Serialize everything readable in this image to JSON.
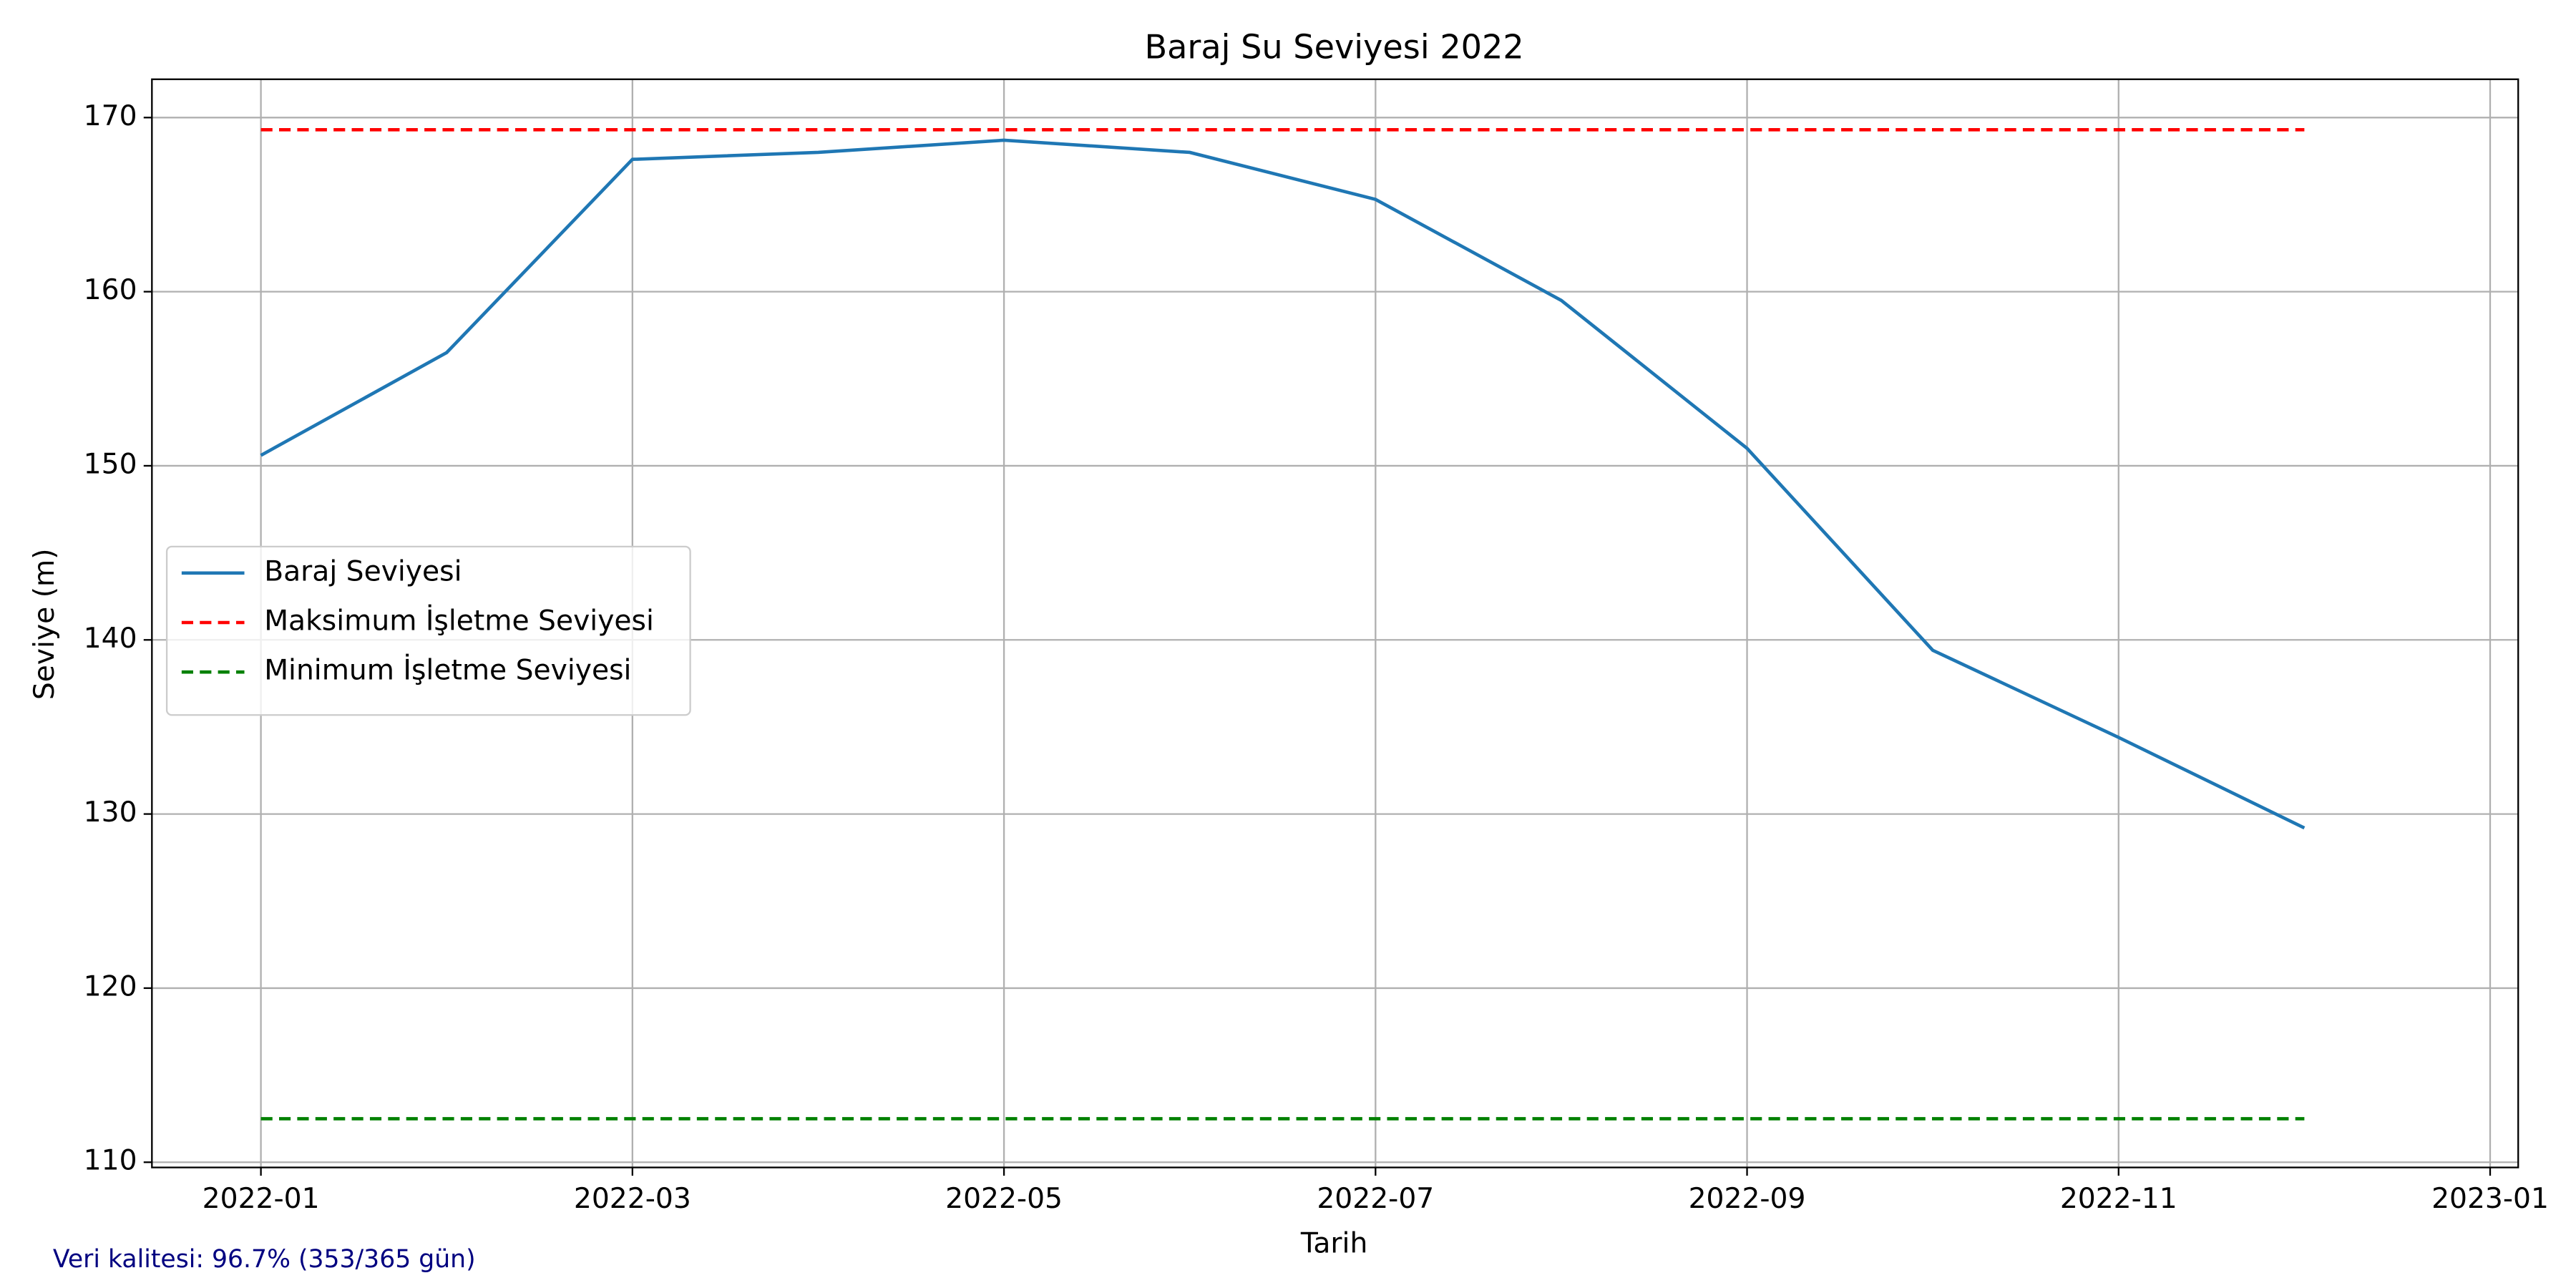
{
  "chart_data": {
    "type": "line",
    "title": "Baraj Su Seviyesi 2022",
    "xlabel": "Tarih",
    "ylabel": "Seviye (m)",
    "x": [
      "2022-01",
      "2022-02",
      "2022-03",
      "2022-04",
      "2022-05",
      "2022-06",
      "2022-07",
      "2022-08",
      "2022-09",
      "2022-10",
      "2022-11",
      "2022-12"
    ],
    "series": [
      {
        "name": "Baraj Seviyesi",
        "color": "#1f77b4",
        "linestyle": "solid",
        "values": [
          150.6,
          156.5,
          167.6,
          168.0,
          168.7,
          168.0,
          165.3,
          159.5,
          151.0,
          139.4,
          134.4,
          129.2
        ]
      },
      {
        "name": "Maksimum İşletme Seviyesi",
        "color": "#ff0000",
        "linestyle": "dashed",
        "values": [
          169.3,
          169.3,
          169.3,
          169.3,
          169.3,
          169.3,
          169.3,
          169.3,
          169.3,
          169.3,
          169.3,
          169.3
        ]
      },
      {
        "name": "Minimum İşletme Seviyesi",
        "color": "#008000",
        "linestyle": "dashed",
        "values": [
          112.5,
          112.5,
          112.5,
          112.5,
          112.5,
          112.5,
          112.5,
          112.5,
          112.5,
          112.5,
          112.5,
          112.5
        ]
      }
    ],
    "xlim": [
      "2022-01",
      "2023-01"
    ],
    "xticks": [
      "2022-01",
      "2022-03",
      "2022-05",
      "2022-07",
      "2022-09",
      "2022-11",
      "2023-01"
    ],
    "ylim": [
      109.7,
      172.2
    ],
    "yticks": [
      110,
      120,
      130,
      140,
      150,
      160,
      170
    ],
    "grid": true,
    "legend": "center left",
    "footnote": "Veri kalitesi: 96.7% (353/365 gün)"
  }
}
